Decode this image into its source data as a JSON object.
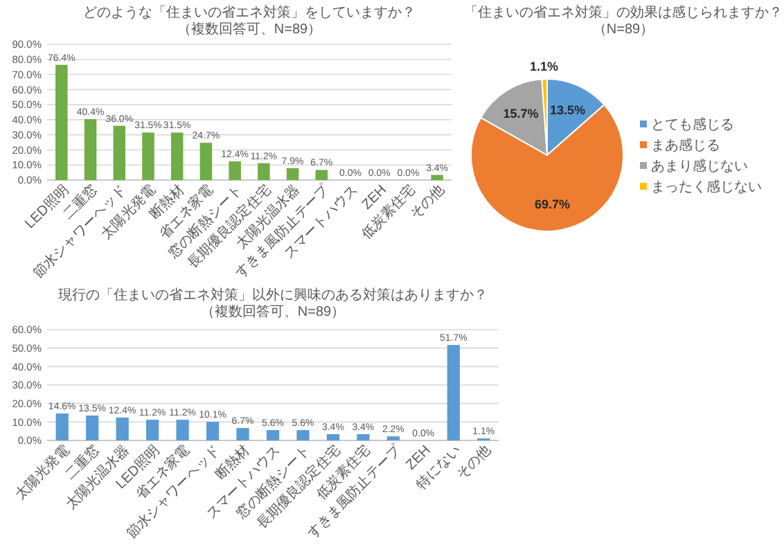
{
  "chart_data": [
    {
      "type": "bar",
      "title": "どのような「住まいの省エネ対策」をしていますか？（複数回答可、N=89）",
      "categories": [
        "LED照明",
        "二重窓",
        "節水シャワーヘッド",
        "太陽光発電",
        "断熱材",
        "省エネ家電",
        "窓の断熱シート",
        "長期優良認定住宅",
        "太陽光温水器",
        "すきま風防止テープ",
        "スマートハウス",
        "ZEH",
        "低炭素住宅",
        "その他"
      ],
      "values": [
        76.4,
        40.4,
        36.0,
        31.5,
        31.5,
        24.7,
        12.4,
        11.2,
        7.9,
        6.7,
        0.0,
        0.0,
        0.0,
        3.4
      ],
      "color": "#70ad47",
      "value_labels": [
        "76.4%",
        "40.4%",
        "36.0%",
        "31.5%",
        "31.5%",
        "24.7%",
        "12.4%",
        "11.2%",
        "7.9%",
        "6.7%",
        "0.0%",
        "0.0%",
        "0.0%",
        "3.4%"
      ],
      "ylim": [
        0,
        90
      ],
      "yticks": [
        {
          "value": 0,
          "label": "0.0%"
        },
        {
          "value": 10,
          "label": "10.0%"
        },
        {
          "value": 20,
          "label": "20.0%"
        },
        {
          "value": 30,
          "label": "30.0%"
        },
        {
          "value": 40,
          "label": "40.0%"
        },
        {
          "value": 50,
          "label": "50.0%"
        },
        {
          "value": 60,
          "label": "60.0%"
        },
        {
          "value": 70,
          "label": "70.0%"
        },
        {
          "value": 80,
          "label": "80.0%"
        },
        {
          "value": 90,
          "label": "90.0%"
        }
      ],
      "grid": "y"
    },
    {
      "type": "pie",
      "title": "「住まいの省エネ対策」の効果は感じられますか？（N=89）",
      "categories": [
        "とても感じる",
        "まあ感じる",
        "あまり感じない",
        "まったく感じない"
      ],
      "values": [
        13.5,
        69.7,
        15.7,
        1.1
      ],
      "colors": [
        "#5b9bd5",
        "#ed7d31",
        "#a5a5a5",
        "#ffc000"
      ],
      "value_labels": [
        "13.5%",
        "69.7%",
        "15.7%",
        "1.1%"
      ],
      "legend": "right"
    },
    {
      "type": "bar",
      "title": "現行の「住まいの省エネ対策」以外に興味のある対策はありますか？",
      "subtitle": "（複数回答可、N=89）",
      "categories": [
        "太陽光発電",
        "二重窓",
        "太陽光温水器",
        "LED照明",
        "省エネ家電",
        "節水シャワーヘッド",
        "断熱材",
        "スマートハウス",
        "窓の断熱シート",
        "長期優良認定住宅",
        "低炭素住宅",
        "すきま風防止テープ",
        "ZEH",
        "特にない",
        "その他"
      ],
      "values": [
        14.6,
        13.5,
        12.4,
        11.2,
        11.2,
        10.1,
        6.7,
        5.6,
        5.6,
        3.4,
        3.4,
        2.2,
        0.0,
        51.7,
        1.1
      ],
      "color": "#5b9bd5",
      "value_labels": [
        "14.6%",
        "13.5%",
        "12.4%",
        "11.2%",
        "11.2%",
        "10.1%",
        "6.7%",
        "5.6%",
        "5.6%",
        "3.4%",
        "3.4%",
        "2.2%",
        "0.0%",
        "51.7%",
        "1.1%"
      ],
      "ylim": [
        0,
        60
      ],
      "yticks": [
        {
          "value": 0,
          "label": "0.0%"
        },
        {
          "value": 10,
          "label": "10.0%"
        },
        {
          "value": 20,
          "label": "20.0%"
        },
        {
          "value": 30,
          "label": "30.0%"
        },
        {
          "value": 40,
          "label": "40.0%"
        },
        {
          "value": 50,
          "label": "50.0%"
        },
        {
          "value": 60,
          "label": "60.0%"
        }
      ],
      "grid": "y"
    }
  ]
}
